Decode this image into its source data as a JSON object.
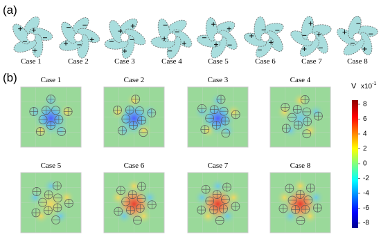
{
  "panel_a": {
    "label": "(a)",
    "cases": [
      "Case 1",
      "Case 2",
      "Case 3",
      "Case 4",
      "Case 5",
      "Case 6",
      "Case 7",
      "Case 8"
    ]
  },
  "panel_b": {
    "label": "(b)",
    "cases": [
      "Case 1",
      "Case 2",
      "Case 3",
      "Case 4",
      "Case 5",
      "Case 6",
      "Case 7",
      "Case 8"
    ],
    "colorbar": {
      "unit": "V",
      "scale": "x10",
      "exponent": "-1",
      "ticks": [
        "8",
        "6",
        "4",
        "2",
        "0",
        "-2",
        "-4",
        "-6",
        "-8"
      ]
    }
  }
}
